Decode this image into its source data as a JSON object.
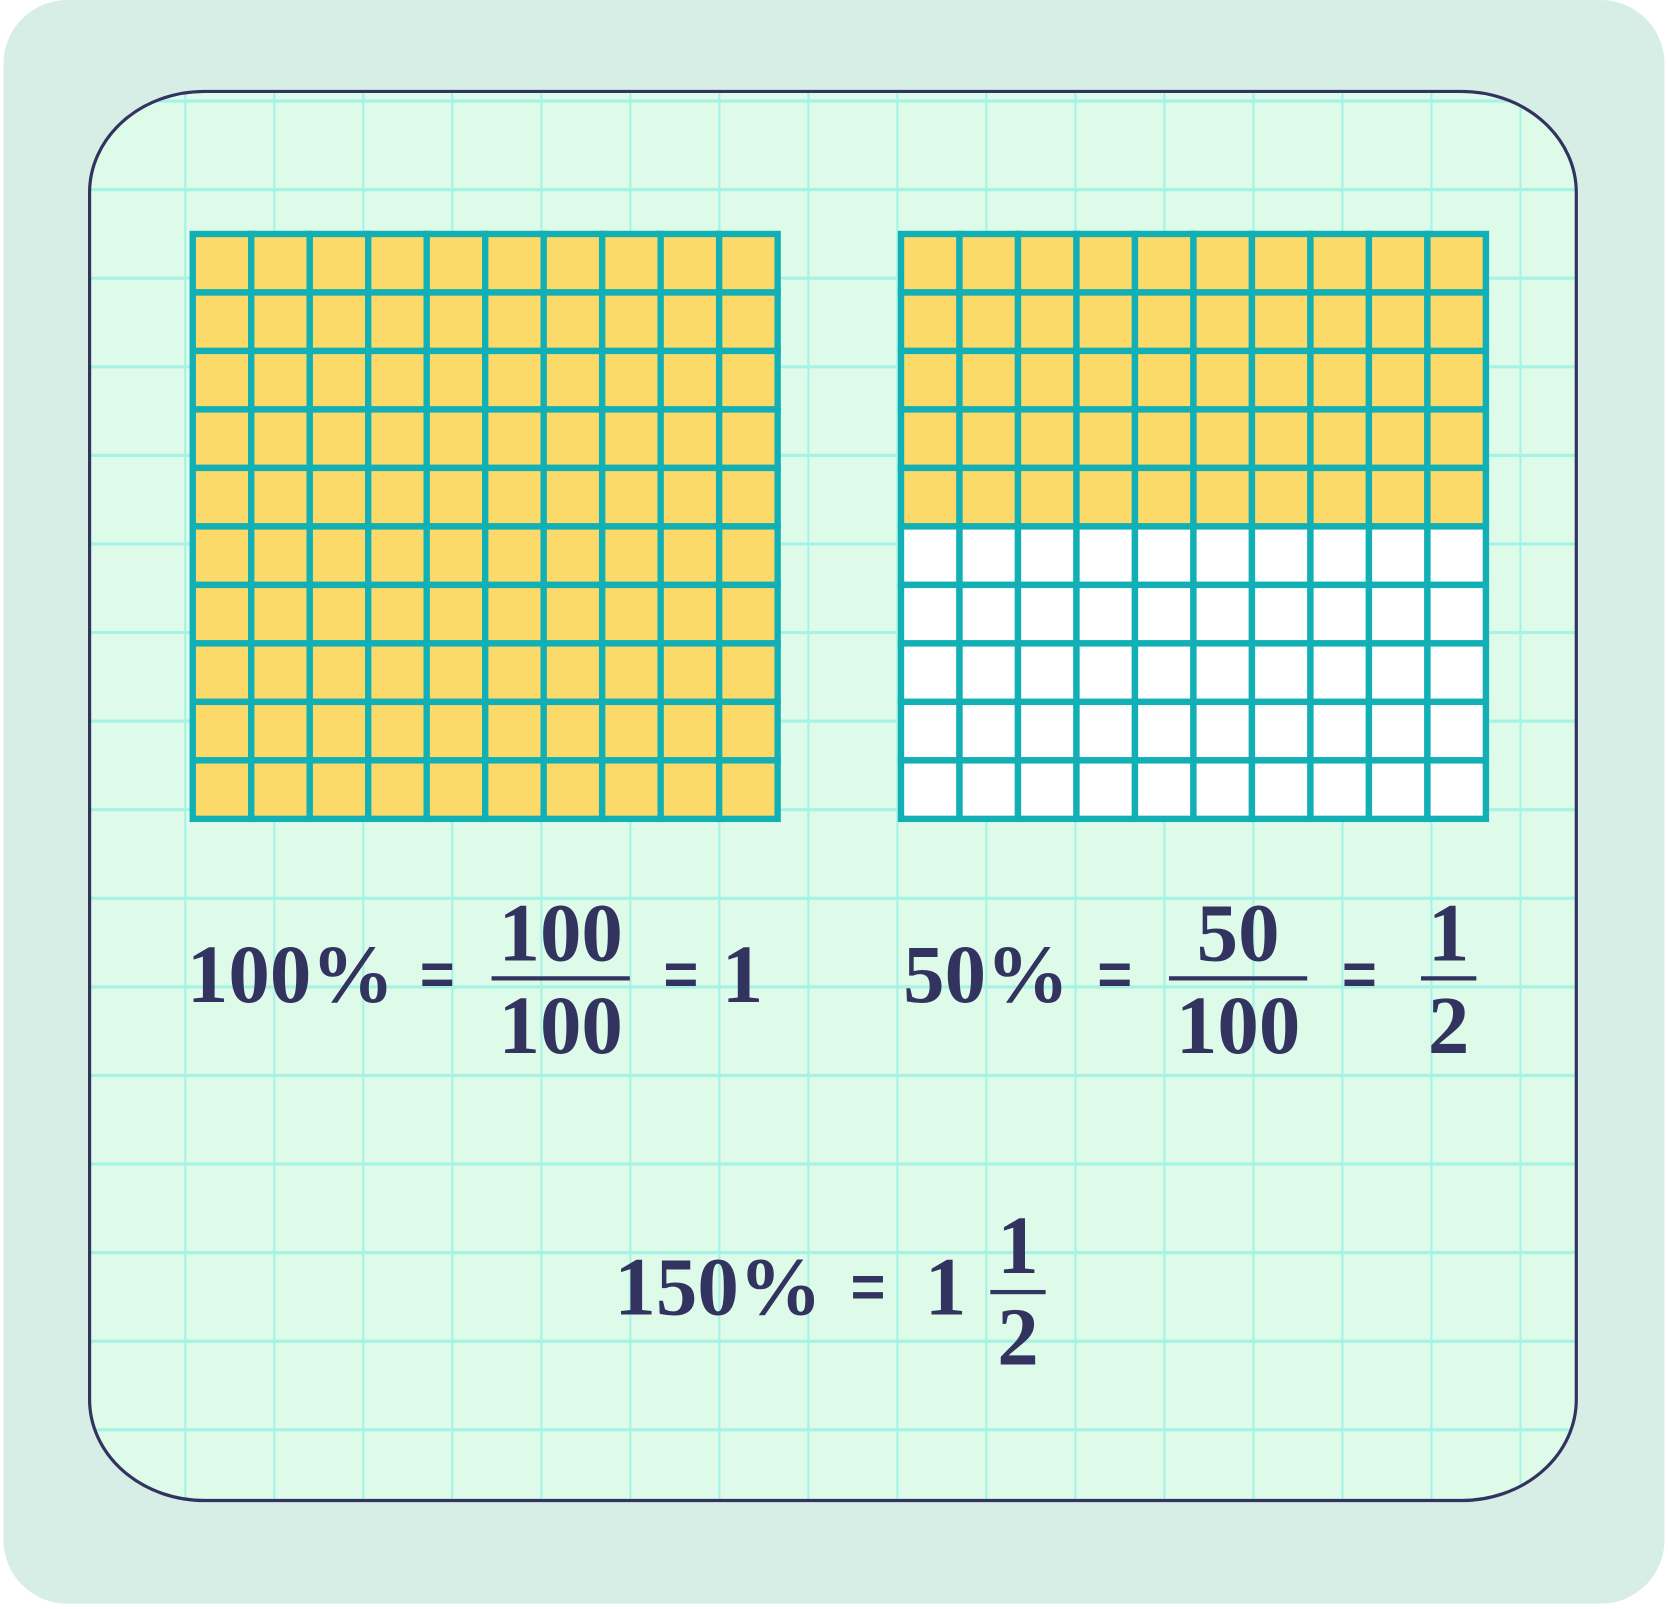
{
  "colors": {
    "outer_background": "#d7eee7",
    "card_background": "#defbea",
    "card_border": "#33335f",
    "paper_grid": "#a6f3e6",
    "cell_border": "#12afb4",
    "shaded": "#fbda6a",
    "unshaded": "#ffffff",
    "text": "#33335f"
  },
  "grids": [
    {
      "rows": 10,
      "cols": 10,
      "shaded_cells": 100,
      "shaded_percent": 100
    },
    {
      "rows": 10,
      "cols": 10,
      "shaded_cells": 50,
      "shaded_percent": 50
    }
  ],
  "equations": {
    "first": {
      "percent": "100%",
      "eq1": "=",
      "numerator": "100",
      "denominator": "100",
      "eq2": "=",
      "result": "1"
    },
    "second": {
      "percent": "50%",
      "eq1": "=",
      "numerator": "50",
      "denominator": "100",
      "eq2": "=",
      "result_numerator": "1",
      "result_denominator": "2"
    },
    "third": {
      "percent": "150%",
      "eq1": "=",
      "whole": "1",
      "numerator": "1",
      "denominator": "2"
    }
  }
}
